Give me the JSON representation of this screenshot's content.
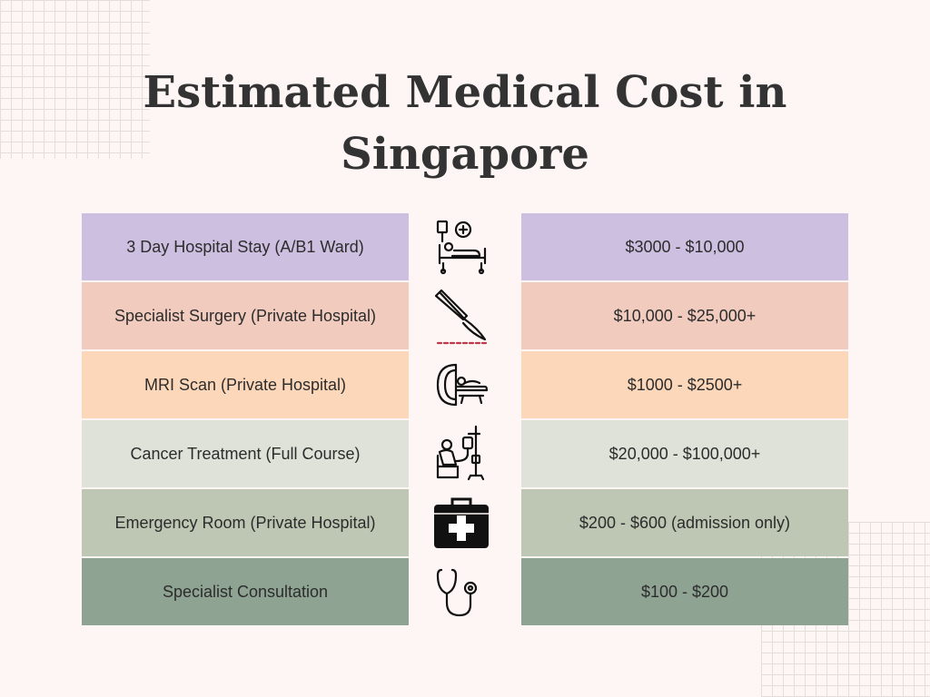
{
  "title": {
    "line1": "Estimated Medical Cost in",
    "line2": "Singapore"
  },
  "rows": [
    {
      "label": "3 Day Hospital Stay (A/B1 Ward)",
      "price": "$3000 - $10,000",
      "icon": "hospital-bed-icon",
      "color": "#cdbfe0"
    },
    {
      "label": "Specialist Surgery (Private Hospital)",
      "price": "$10,000 - $25,000+",
      "icon": "scalpel-icon",
      "color": "#f1cbbd"
    },
    {
      "label": "MRI Scan (Private Hospital)",
      "price": "$1000 - $2500+",
      "icon": "mri-scanner-icon",
      "color": "#fdd7b9"
    },
    {
      "label": "Cancer Treatment (Full Course)",
      "price": "$20,000 - $100,000+",
      "icon": "chemotherapy-patient-icon",
      "color": "#dfe2d9"
    },
    {
      "label": "Emergency Room (Private Hospital)",
      "price": "$200 - $600 (admission only)",
      "icon": "first-aid-kit-icon",
      "color": "#bdc7b3"
    },
    {
      "label": "Specialist Consultation",
      "price": "$100 - $200",
      "icon": "stethoscope-icon",
      "color": "#8fa393"
    }
  ]
}
